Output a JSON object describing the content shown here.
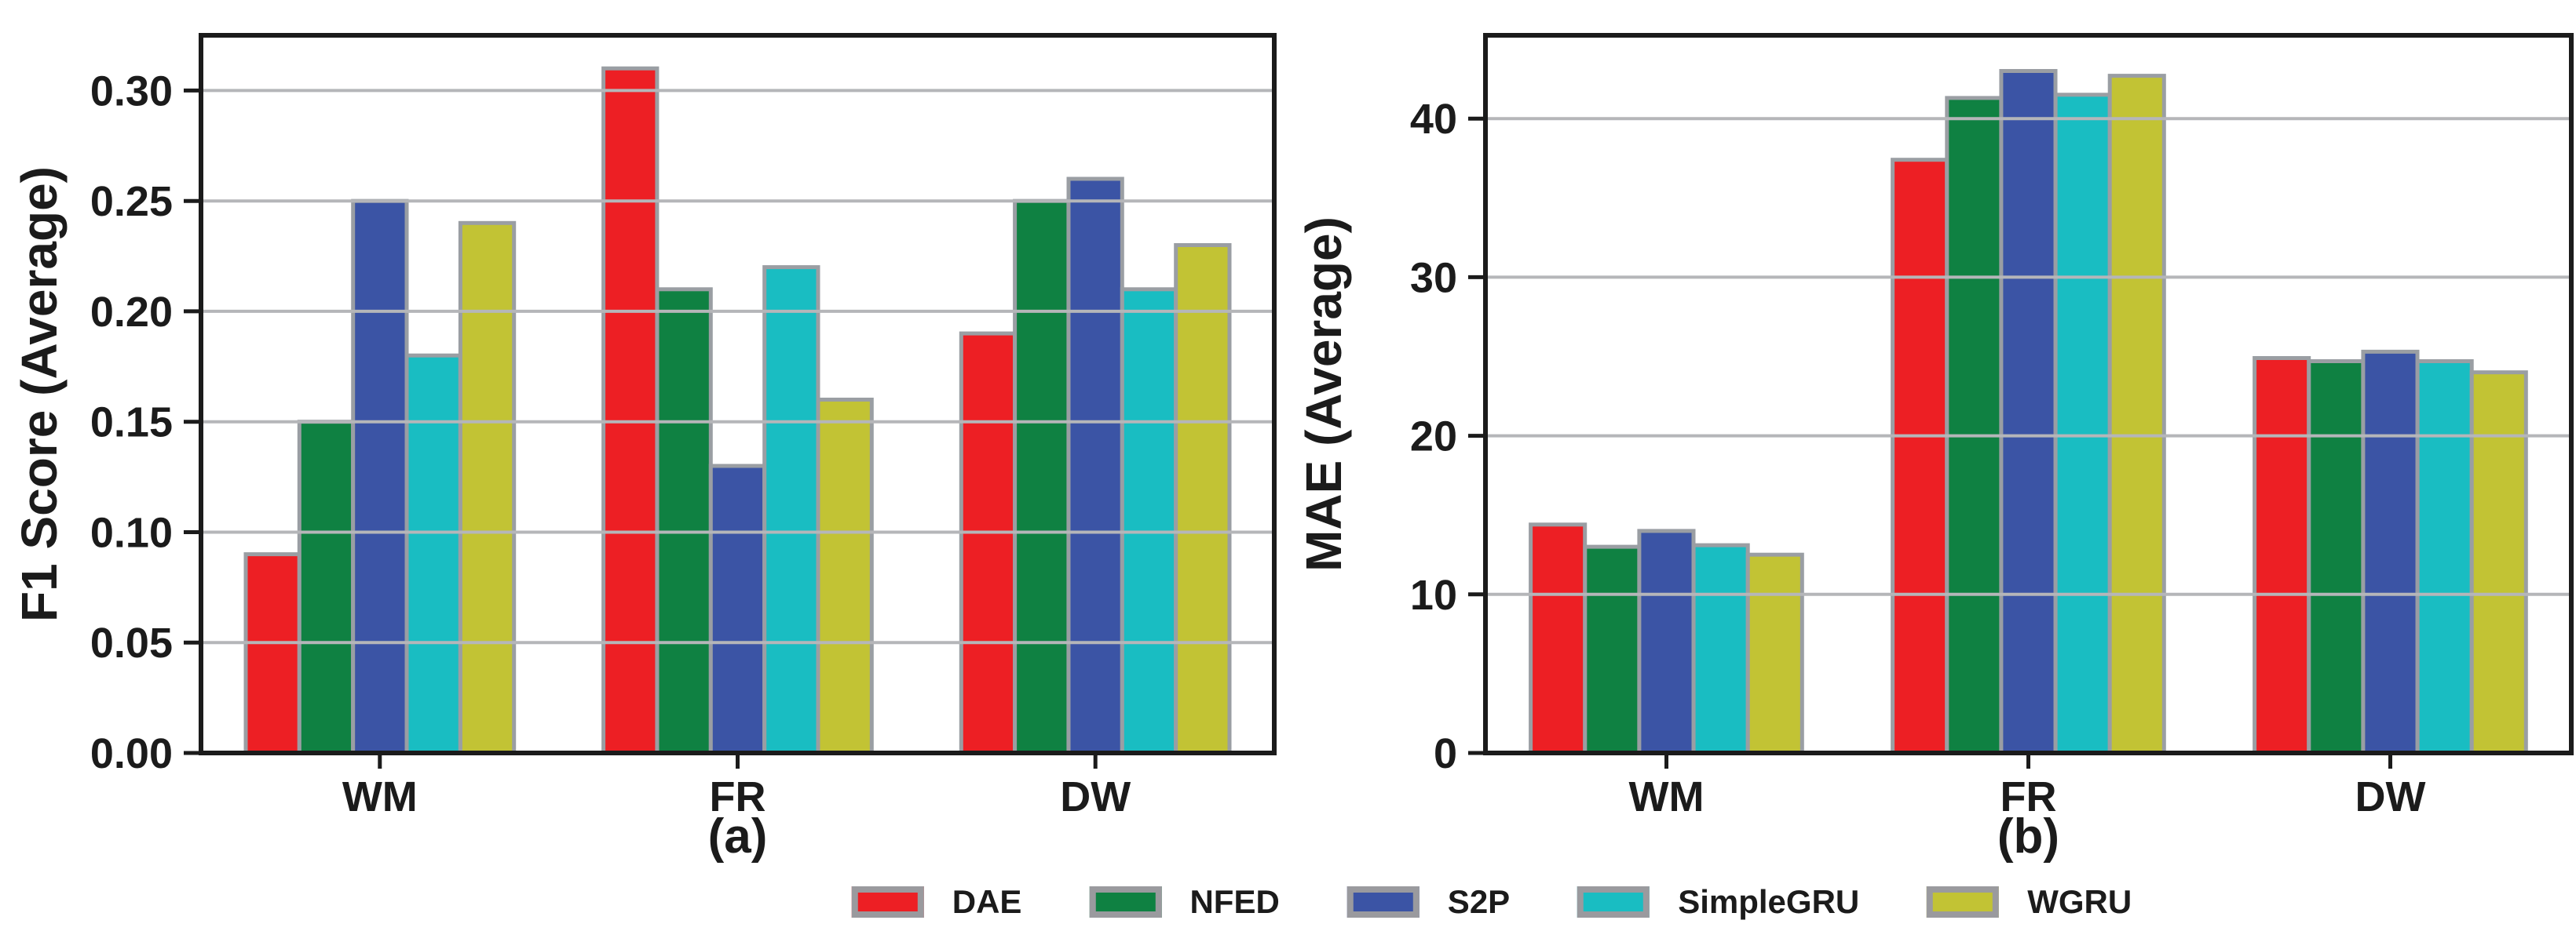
{
  "chart_data": [
    {
      "type": "bar",
      "caption": "(a)",
      "ylabel": "F1 Score (Average)",
      "xlabel": "",
      "categories": [
        "WM",
        "FR",
        "DW"
      ],
      "ylim": [
        0,
        0.325
      ],
      "yticks": [
        0,
        0.05,
        0.1,
        0.15,
        0.2,
        0.25,
        0.3
      ],
      "ytick_labels": [
        "0.00",
        "0.05",
        "0.10",
        "0.15",
        "0.20",
        "0.25",
        "0.30"
      ],
      "grid": "horizontal gridlines drawn over bars",
      "legend_position": "shared legend below figure",
      "series": [
        {
          "name": "DAE",
          "color": "#ed1f24",
          "values": [
            0.09,
            0.31,
            0.19
          ]
        },
        {
          "name": "NFED",
          "color": "#0f8142",
          "values": [
            0.15,
            0.21,
            0.25
          ]
        },
        {
          "name": "S2P",
          "color": "#3b54a5",
          "values": [
            0.25,
            0.13,
            0.26
          ]
        },
        {
          "name": "SimpleGRU",
          "color": "#19bdc2",
          "values": [
            0.18,
            0.22,
            0.21
          ]
        },
        {
          "name": "WGRU",
          "color": "#c2c334",
          "values": [
            0.24,
            0.16,
            0.23
          ]
        }
      ]
    },
    {
      "type": "bar",
      "caption": "(b)",
      "ylabel": "MAE (Average)",
      "xlabel": "",
      "categories": [
        "WM",
        "FR",
        "DW"
      ],
      "ylim": [
        0,
        45.25
      ],
      "yticks": [
        0,
        10,
        20,
        30,
        40
      ],
      "ytick_labels": [
        "0",
        "10",
        "20",
        "30",
        "40"
      ],
      "grid": "horizontal gridlines drawn over bars",
      "legend_position": "shared legend below figure",
      "series": [
        {
          "name": "DAE",
          "color": "#ed1f24",
          "values": [
            14.4,
            37.4,
            24.9
          ]
        },
        {
          "name": "NFED",
          "color": "#0f8142",
          "values": [
            13.0,
            41.3,
            24.7
          ]
        },
        {
          "name": "S2P",
          "color": "#3b54a5",
          "values": [
            14.0,
            43.0,
            25.3
          ]
        },
        {
          "name": "SimpleGRU",
          "color": "#19bdc2",
          "values": [
            13.1,
            41.5,
            24.7
          ]
        },
        {
          "name": "WGRU",
          "color": "#c2c334",
          "values": [
            12.5,
            42.7,
            24.0
          ]
        }
      ]
    }
  ],
  "legend": {
    "items": [
      {
        "label": "DAE",
        "color": "#ed1f24"
      },
      {
        "label": "NFED",
        "color": "#0f8142"
      },
      {
        "label": "S2P",
        "color": "#3b54a5"
      },
      {
        "label": "SimpleGRU",
        "color": "#19bdc2"
      },
      {
        "label": "WGRU",
        "color": "#c2c334"
      }
    ]
  },
  "styles": {
    "bar_edge_color": "#9a9ea3",
    "grid_color": "#b5b6b9",
    "spine_color": "#1b1b1b",
    "legend_swatch_border": "#9a9a9e",
    "text_color": "#1b1b1b",
    "background": "#ffffff"
  }
}
